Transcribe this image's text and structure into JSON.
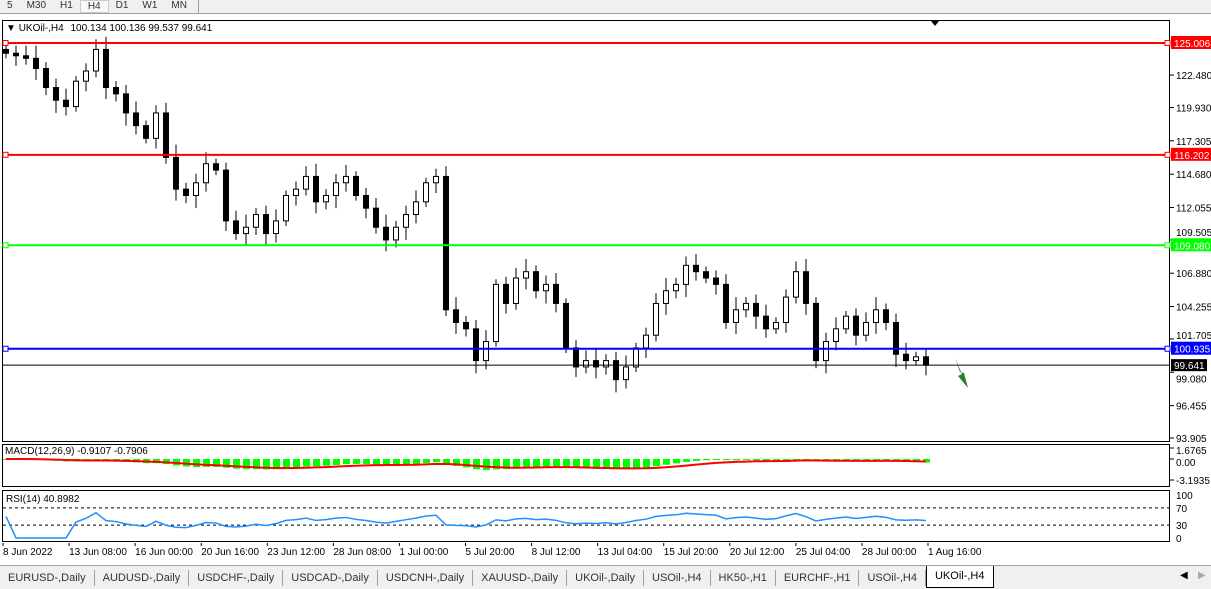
{
  "timeframes": [
    "5",
    "M30",
    "H1",
    "H4",
    "D1",
    "W1",
    "MN"
  ],
  "active_timeframe": "H4",
  "header": {
    "symbol": "UKOil-,H4",
    "ohlc": "100.134 100.136 99.537 99.641"
  },
  "price_axis": {
    "min": 93.905,
    "max": 125.006,
    "ticks": [
      "122.480",
      "119.930",
      "117.305",
      "114.680",
      "112.055",
      "109.505",
      "106.880",
      "104.255",
      "101.705",
      "99.080",
      "96.455",
      "93.905"
    ]
  },
  "levels": [
    {
      "price": 125.006,
      "label": "125.006",
      "color": "#ff0000"
    },
    {
      "price": 116.202,
      "label": "116.202",
      "color": "#ff0000"
    },
    {
      "price": 109.08,
      "label": "109.080",
      "color": "#00ff00"
    },
    {
      "price": 100.935,
      "label": "100.935",
      "color": "#0000ff"
    }
  ],
  "current_price": {
    "price": 99.641,
    "label": "99.641"
  },
  "closes": [
    124.2,
    124,
    123.8,
    123,
    121.5,
    120.5,
    120,
    122,
    122.8,
    124.5,
    121.5,
    121,
    119.5,
    118.5,
    117.5,
    119.5,
    116,
    113.5,
    113,
    114,
    115.5,
    115,
    111,
    110,
    110.5,
    111.5,
    110,
    111,
    113,
    113.5,
    114.5,
    112.5,
    113,
    114,
    114.5,
    113,
    112,
    110.5,
    109.5,
    110.5,
    111.5,
    112.5,
    114,
    114.5,
    104,
    103,
    102.5,
    100,
    101.5,
    106,
    104.5,
    106.5,
    107,
    105.5,
    106,
    104.5,
    101,
    99.5,
    100,
    99.5,
    100,
    98.5,
    99.5,
    101,
    102,
    104.5,
    105.5,
    106,
    107.5,
    107,
    106.5,
    106,
    103,
    104,
    104.5,
    103.5,
    102.5,
    103,
    105,
    107,
    104.5,
    100,
    101.5,
    102.5,
    103.5,
    102,
    103,
    104,
    103,
    100.5,
    100,
    100.3,
    99.641
  ],
  "macd": {
    "label": "MACD(12,26,9) -0.9107 -0.7906",
    "ticks": [
      "1.6765",
      "0.00",
      "-3.1935"
    ],
    "max": 1.6765,
    "min": -3.1935,
    "hist_color": "#00ff00",
    "signal_color": "#ff0000"
  },
  "rsi": {
    "label": "RSI(14) 40.8982",
    "ticks": [
      "100",
      "70",
      "30",
      "0"
    ],
    "color": "#1e90ff"
  },
  "dates": [
    "8 Jun 2022",
    "13 Jun 08:00",
    "16 Jun 00:00",
    "20 Jun 16:00",
    "23 Jun 12:00",
    "28 Jun 08:00",
    "1 Jul 00:00",
    "5 Jul 20:00",
    "8 Jul 12:00",
    "13 Jul 04:00",
    "15 Jul 20:00",
    "20 Jul 12:00",
    "25 Jul 04:00",
    "28 Jul 00:00",
    "1 Aug 16:00"
  ],
  "symbol_tabs": [
    "EURUSD-,Daily",
    "AUDUSD-,Daily",
    "USDCHF-,Daily",
    "USDCAD-,Daily",
    "USDCNH-,Daily",
    "XAUUSD-,Daily",
    "UKOil-,Daily",
    "USOil-,H4",
    "HK50-,H1",
    "EURCHF-,H1",
    "USOil-,H4",
    "UKOil-,H4"
  ],
  "active_tab": "UKOil-,H4",
  "arrow_color": "#2e7d32"
}
